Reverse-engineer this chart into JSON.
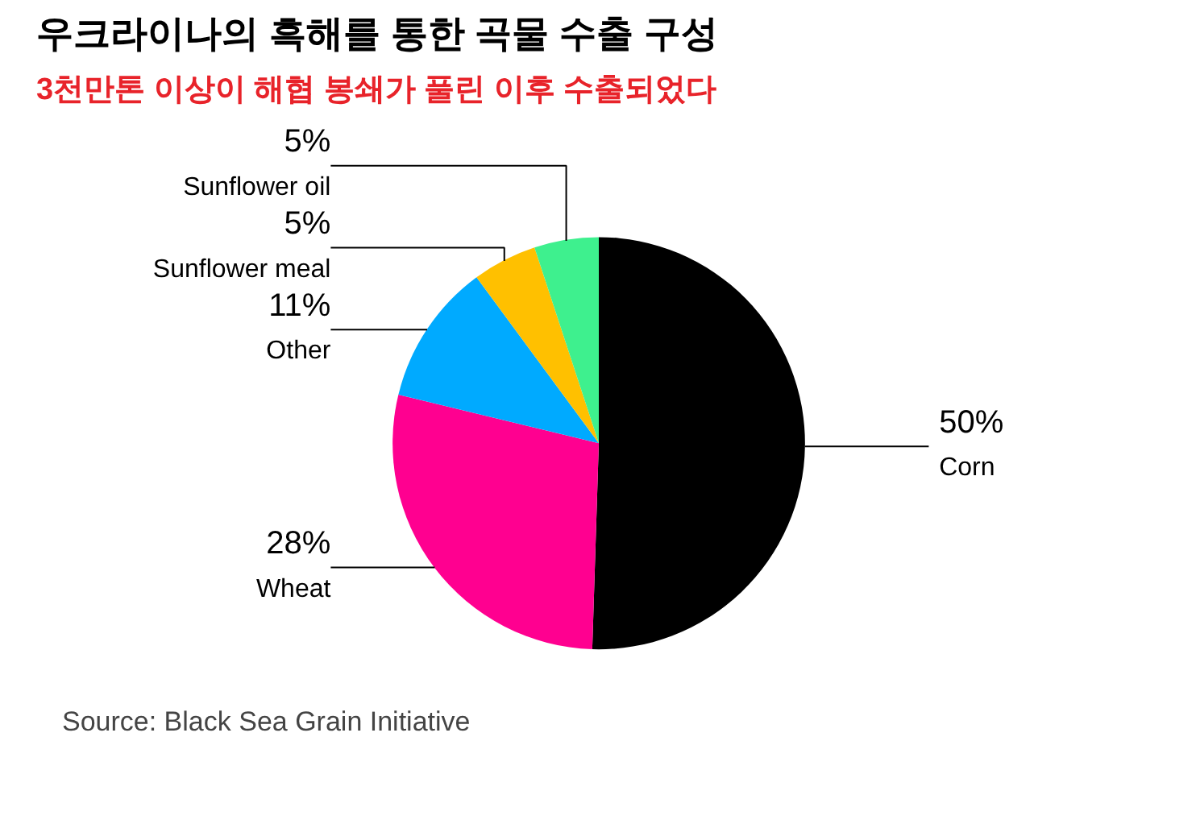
{
  "chart_data": {
    "type": "pie",
    "title": "우크라이나의 흑해를 통한 곡물 수출 구성",
    "subtitle": "3천만톤 이상이 해협 봉쇄가 풀린 이후 수출되었다",
    "categories": [
      "Corn",
      "Wheat",
      "Other",
      "Sunflower meal",
      "Sunflower oil"
    ],
    "values": [
      50,
      28,
      11,
      5,
      5
    ],
    "colors": [
      "#000000",
      "#ff0090",
      "#00aaff",
      "#ffc000",
      "#3ef08e"
    ],
    "value_labels": [
      "50%",
      "28%",
      "11%",
      "5%",
      "5%"
    ],
    "annotations": [
      "Source: Black Sea Grain Initiative"
    ]
  }
}
